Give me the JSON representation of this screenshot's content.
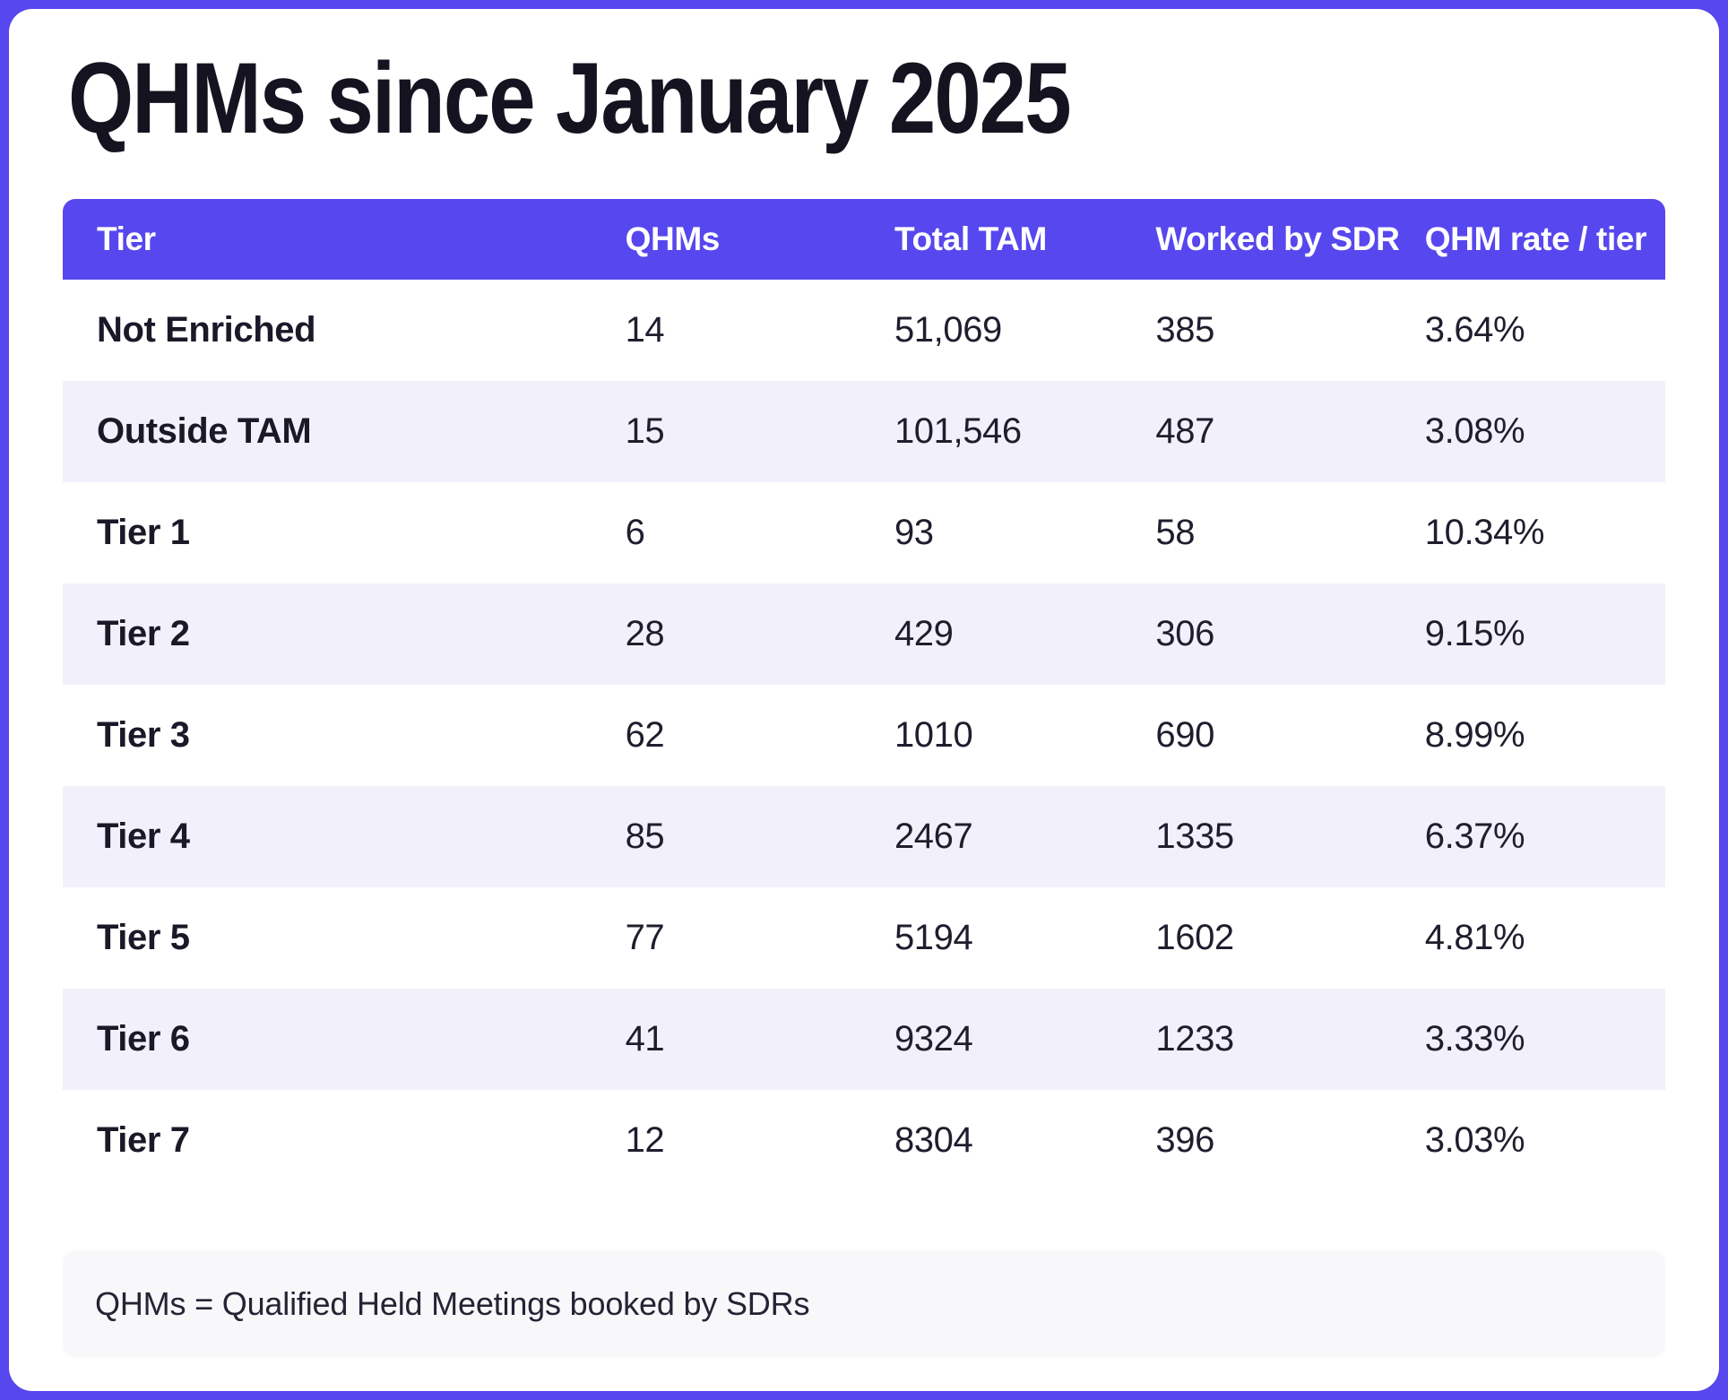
{
  "colors": {
    "accent_purple": "#5747EE",
    "frame_purple": "#5747EE",
    "row_alt_lavender": "#F2F1FB",
    "footnote_gray": "#F8F8FA",
    "title_dark": "#161321",
    "cell_dark": "#201D2E",
    "header_text": "#FFFFFF"
  },
  "chart_data": {
    "type": "table",
    "title": "QHMs since January 2025",
    "columns": [
      "Tier",
      "QHMs",
      "Total TAM",
      "Worked by SDR",
      "QHM rate / tier"
    ],
    "rows": [
      [
        "Not Enriched",
        "14",
        "51,069",
        "385",
        "3.64%"
      ],
      [
        "Outside TAM",
        "15",
        "101,546",
        "487",
        "3.08%"
      ],
      [
        "Tier 1",
        "6",
        "93",
        "58",
        "10.34%"
      ],
      [
        "Tier 2",
        "28",
        "429",
        "306",
        "9.15%"
      ],
      [
        "Tier 3",
        "62",
        "1010",
        "690",
        "8.99%"
      ],
      [
        "Tier 4",
        "85",
        "2467",
        "1335",
        "6.37%"
      ],
      [
        "Tier 5",
        "77",
        "5194",
        "1602",
        "4.81%"
      ],
      [
        "Tier 6",
        "41",
        "9324",
        "1233",
        "3.33%"
      ],
      [
        "Tier 7",
        "12",
        "8304",
        "396",
        "3.03%"
      ]
    ],
    "footnote": "QHMs = Qualified Held Meetings booked by SDRs",
    "layout": {
      "legend": "none",
      "grid": "row-striping",
      "column_alignment": [
        "left",
        "left",
        "left",
        "left",
        "left"
      ]
    }
  }
}
